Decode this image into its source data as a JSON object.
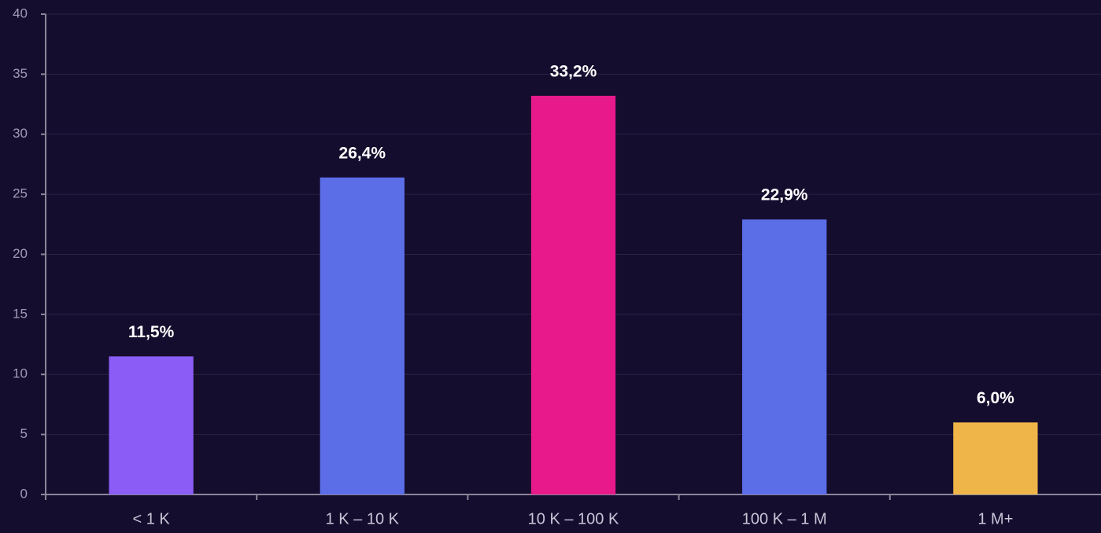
{
  "chart_data": {
    "type": "bar",
    "categories": [
      "< 1 K",
      "1 K – 10 K",
      "10 K – 100 K",
      "100 K – 1 M",
      "1 M+"
    ],
    "values": [
      11.5,
      26.4,
      33.2,
      22.9,
      6.0
    ],
    "value_labels": [
      "11,5%",
      "26,4%",
      "33,2%",
      "22,9%",
      "6,0%"
    ],
    "colors": [
      "#8b5cf6",
      "#5b6ee8",
      "#e8198b",
      "#5b6ee8",
      "#f0b548"
    ],
    "ylim": [
      0,
      40
    ],
    "yticks": [
      0,
      5,
      10,
      15,
      20,
      25,
      30,
      35,
      40
    ],
    "grid": true
  }
}
